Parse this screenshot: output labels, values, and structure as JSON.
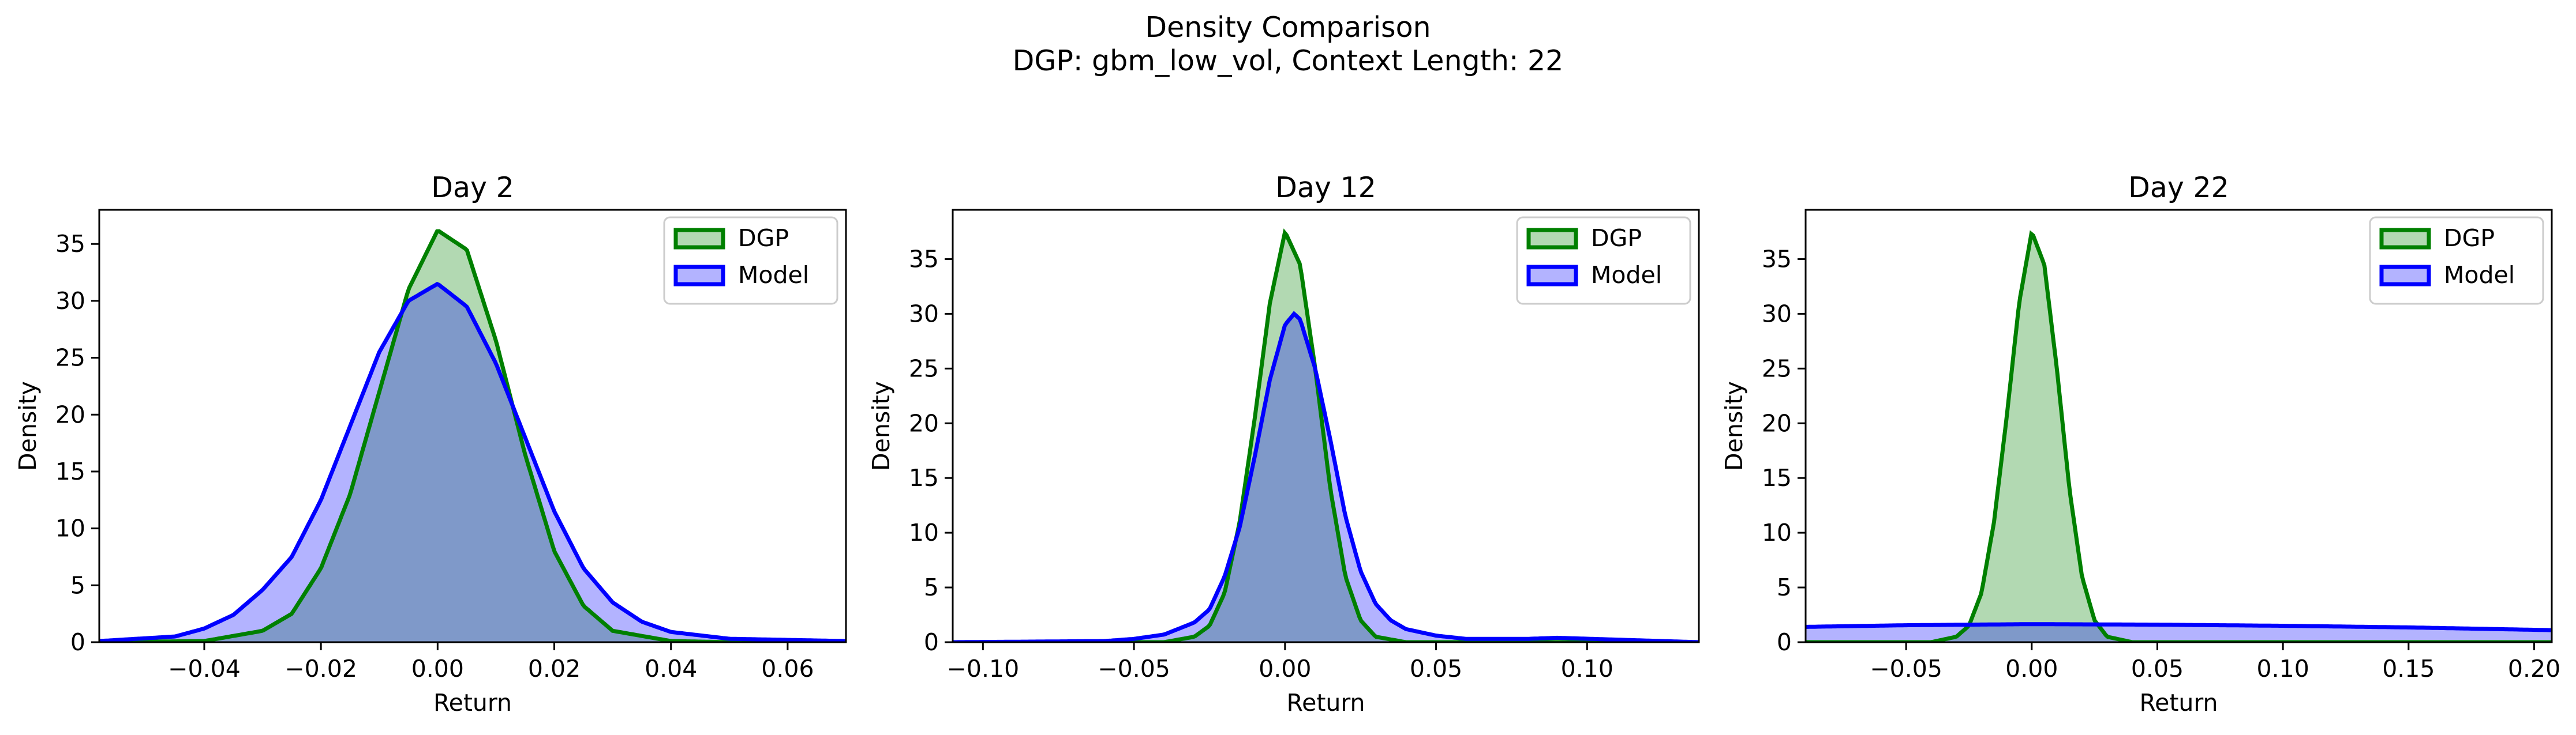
{
  "figure": {
    "title_line1": "Density Comparison",
    "title_line2": "DGP: gbm_low_vol, Context Length: 22"
  },
  "colors": {
    "dgp_line": "#008000",
    "dgp_fill": "#b2d9b2",
    "model_line": "#0000ff",
    "model_fill": "#b3b3ff",
    "overlap_fill": "#7f99c9"
  },
  "chart_data": [
    {
      "type": "area",
      "title": "Day 2",
      "xlabel": "Return",
      "ylabel": "Density",
      "xlim": [
        -0.058,
        0.07
      ],
      "ylim": [
        0,
        38
      ],
      "xticks": [
        -0.04,
        -0.02,
        0.0,
        0.02,
        0.04,
        0.06
      ],
      "xtick_labels": [
        "−0.04",
        "−0.02",
        "0.00",
        "0.02",
        "0.04",
        "0.06"
      ],
      "yticks": [
        0,
        5,
        10,
        15,
        20,
        25,
        30,
        35
      ],
      "ytick_labels": [
        "0",
        "5",
        "10",
        "15",
        "20",
        "25",
        "30",
        "35"
      ],
      "legend": "top-right",
      "grid": false,
      "series": [
        {
          "name": "DGP",
          "x": [
            -0.058,
            -0.04,
            -0.03,
            -0.025,
            -0.02,
            -0.015,
            -0.01,
            -0.005,
            0.0,
            0.005,
            0.01,
            0.015,
            0.02,
            0.025,
            0.03,
            0.04,
            0.05,
            0.07
          ],
          "y": [
            0,
            0.1,
            1,
            2.5,
            6.5,
            13,
            22,
            31,
            36.2,
            34.5,
            26.5,
            16.5,
            8,
            3.2,
            1,
            0.1,
            0,
            0
          ]
        },
        {
          "name": "Model",
          "x": [
            -0.058,
            -0.045,
            -0.04,
            -0.035,
            -0.03,
            -0.025,
            -0.02,
            -0.015,
            -0.01,
            -0.005,
            0.0,
            0.005,
            0.01,
            0.015,
            0.02,
            0.025,
            0.03,
            0.035,
            0.04,
            0.05,
            0.06,
            0.07
          ],
          "y": [
            0.1,
            0.5,
            1.2,
            2.4,
            4.6,
            7.5,
            12.5,
            19,
            25.5,
            30,
            31.5,
            29.5,
            24.5,
            18,
            11.5,
            6.5,
            3.5,
            1.8,
            0.9,
            0.3,
            0.2,
            0.1
          ]
        }
      ]
    },
    {
      "type": "area",
      "title": "Day 12",
      "xlabel": "Return",
      "ylabel": "Density",
      "xlim": [
        -0.11,
        0.137
      ],
      "ylim": [
        0,
        39.5
      ],
      "xticks": [
        -0.1,
        -0.05,
        0.0,
        0.05,
        0.1
      ],
      "xtick_labels": [
        "−0.10",
        "−0.05",
        "0.00",
        "0.05",
        "0.10"
      ],
      "yticks": [
        0,
        5,
        10,
        15,
        20,
        25,
        30,
        35
      ],
      "ytick_labels": [
        "0",
        "5",
        "10",
        "15",
        "20",
        "25",
        "30",
        "35"
      ],
      "legend": "top-right",
      "grid": false,
      "series": [
        {
          "name": "DGP",
          "x": [
            -0.11,
            -0.04,
            -0.03,
            -0.025,
            -0.02,
            -0.015,
            -0.01,
            -0.005,
            0.0,
            0.005,
            0.01,
            0.015,
            0.02,
            0.025,
            0.03,
            0.04,
            0.137
          ],
          "y": [
            0,
            0,
            0.5,
            1.5,
            4.5,
            11,
            20.5,
            31,
            37.5,
            34.5,
            25,
            14,
            6,
            2,
            0.5,
            0,
            0
          ]
        },
        {
          "name": "Model",
          "x": [
            -0.11,
            -0.06,
            -0.05,
            -0.04,
            -0.03,
            -0.025,
            -0.02,
            -0.015,
            -0.01,
            -0.005,
            0.0,
            0.003,
            0.005,
            0.01,
            0.015,
            0.02,
            0.025,
            0.03,
            0.035,
            0.04,
            0.05,
            0.06,
            0.08,
            0.09,
            0.137
          ],
          "y": [
            0,
            0.1,
            0.3,
            0.7,
            1.8,
            3,
            6,
            10.5,
            17,
            24,
            29,
            30,
            29.5,
            25,
            18.5,
            11.5,
            6.5,
            3.5,
            2,
            1.2,
            0.6,
            0.3,
            0.3,
            0.4,
            0
          ]
        }
      ]
    },
    {
      "type": "area",
      "title": "Day 22",
      "xlabel": "Return",
      "ylabel": "Density",
      "xlim": [
        -0.09,
        0.207
      ],
      "ylim": [
        0,
        39.5
      ],
      "xticks": [
        -0.05,
        0.0,
        0.05,
        0.1,
        0.15,
        0.2
      ],
      "xtick_labels": [
        "−0.05",
        "0.00",
        "0.05",
        "0.10",
        "0.15",
        "0.20"
      ],
      "yticks": [
        0,
        5,
        10,
        15,
        20,
        25,
        30,
        35
      ],
      "ytick_labels": [
        "0",
        "5",
        "10",
        "15",
        "20",
        "25",
        "30",
        "35"
      ],
      "legend": "top-right",
      "grid": false,
      "series": [
        {
          "name": "DGP",
          "x": [
            -0.09,
            -0.04,
            -0.03,
            -0.025,
            -0.02,
            -0.015,
            -0.01,
            -0.005,
            0.0,
            0.005,
            0.01,
            0.015,
            0.02,
            0.025,
            0.03,
            0.04,
            0.207
          ],
          "y": [
            0,
            0,
            0.5,
            1.5,
            4.5,
            11,
            20.5,
            31,
            37.5,
            34.5,
            25,
            14,
            6,
            2,
            0.5,
            0,
            0
          ]
        },
        {
          "name": "Model",
          "x": [
            -0.09,
            -0.05,
            0.0,
            0.05,
            0.1,
            0.15,
            0.207
          ],
          "y": [
            1.4,
            1.55,
            1.65,
            1.6,
            1.5,
            1.35,
            1.1
          ]
        }
      ]
    }
  ]
}
